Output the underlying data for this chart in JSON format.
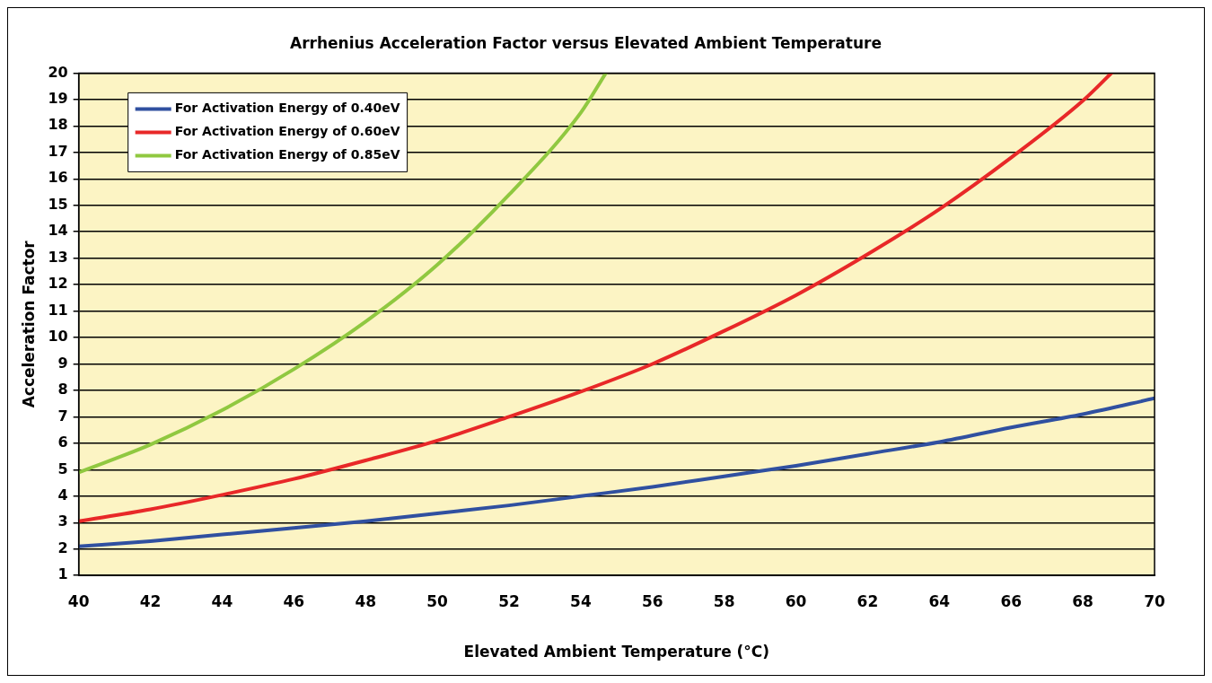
{
  "chart_data": {
    "type": "line",
    "title": "Arrhenius Acceleration Factor versus Elevated Ambient Temperature",
    "xlabel": "Elevated Ambient Temperature (°C)",
    "ylabel": "Acceleration Factor",
    "xlim": [
      40,
      70
    ],
    "xticks": [
      40,
      42,
      44,
      46,
      48,
      50,
      52,
      54,
      56,
      58,
      60,
      62,
      64,
      66,
      68,
      70
    ],
    "ylim": [
      1,
      20
    ],
    "yticks": [
      1,
      2,
      3,
      4,
      5,
      6,
      7,
      8,
      9,
      10,
      11,
      12,
      13,
      14,
      15,
      16,
      17,
      18,
      19,
      20
    ],
    "grid": "y",
    "legend": "top left",
    "marker": "none",
    "line_style": "solid",
    "series": [
      {
        "name": "For Activation Energy of 0.40eV",
        "color": "#3050a0",
        "x": [
          40,
          42,
          44,
          46,
          48,
          50,
          52,
          54,
          56,
          58,
          60,
          62,
          64,
          66,
          68,
          70
        ],
        "values": [
          2.1,
          2.3,
          2.55,
          2.8,
          3.05,
          3.35,
          3.65,
          4.0,
          4.35,
          4.75,
          5.15,
          5.6,
          6.05,
          6.6,
          7.1,
          7.7
        ]
      },
      {
        "name": "For Activation Energy of 0.60eV",
        "color": "#e82828",
        "x": [
          40,
          42,
          44,
          46,
          48,
          50,
          52,
          54,
          56,
          58,
          60,
          62,
          64,
          66,
          68,
          68.8
        ],
        "values": [
          3.05,
          3.5,
          4.05,
          4.65,
          5.35,
          6.1,
          7.0,
          7.95,
          9.0,
          10.25,
          11.6,
          13.15,
          14.85,
          16.8,
          18.95,
          20
        ]
      },
      {
        "name": "For Activation Energy of 0.85eV",
        "color": "#90c840",
        "x": [
          40,
          42,
          44,
          46,
          48,
          50,
          52,
          54,
          54.7
        ],
        "values": [
          4.9,
          5.95,
          7.25,
          8.8,
          10.6,
          12.75,
          15.4,
          18.5,
          20
        ]
      }
    ]
  }
}
